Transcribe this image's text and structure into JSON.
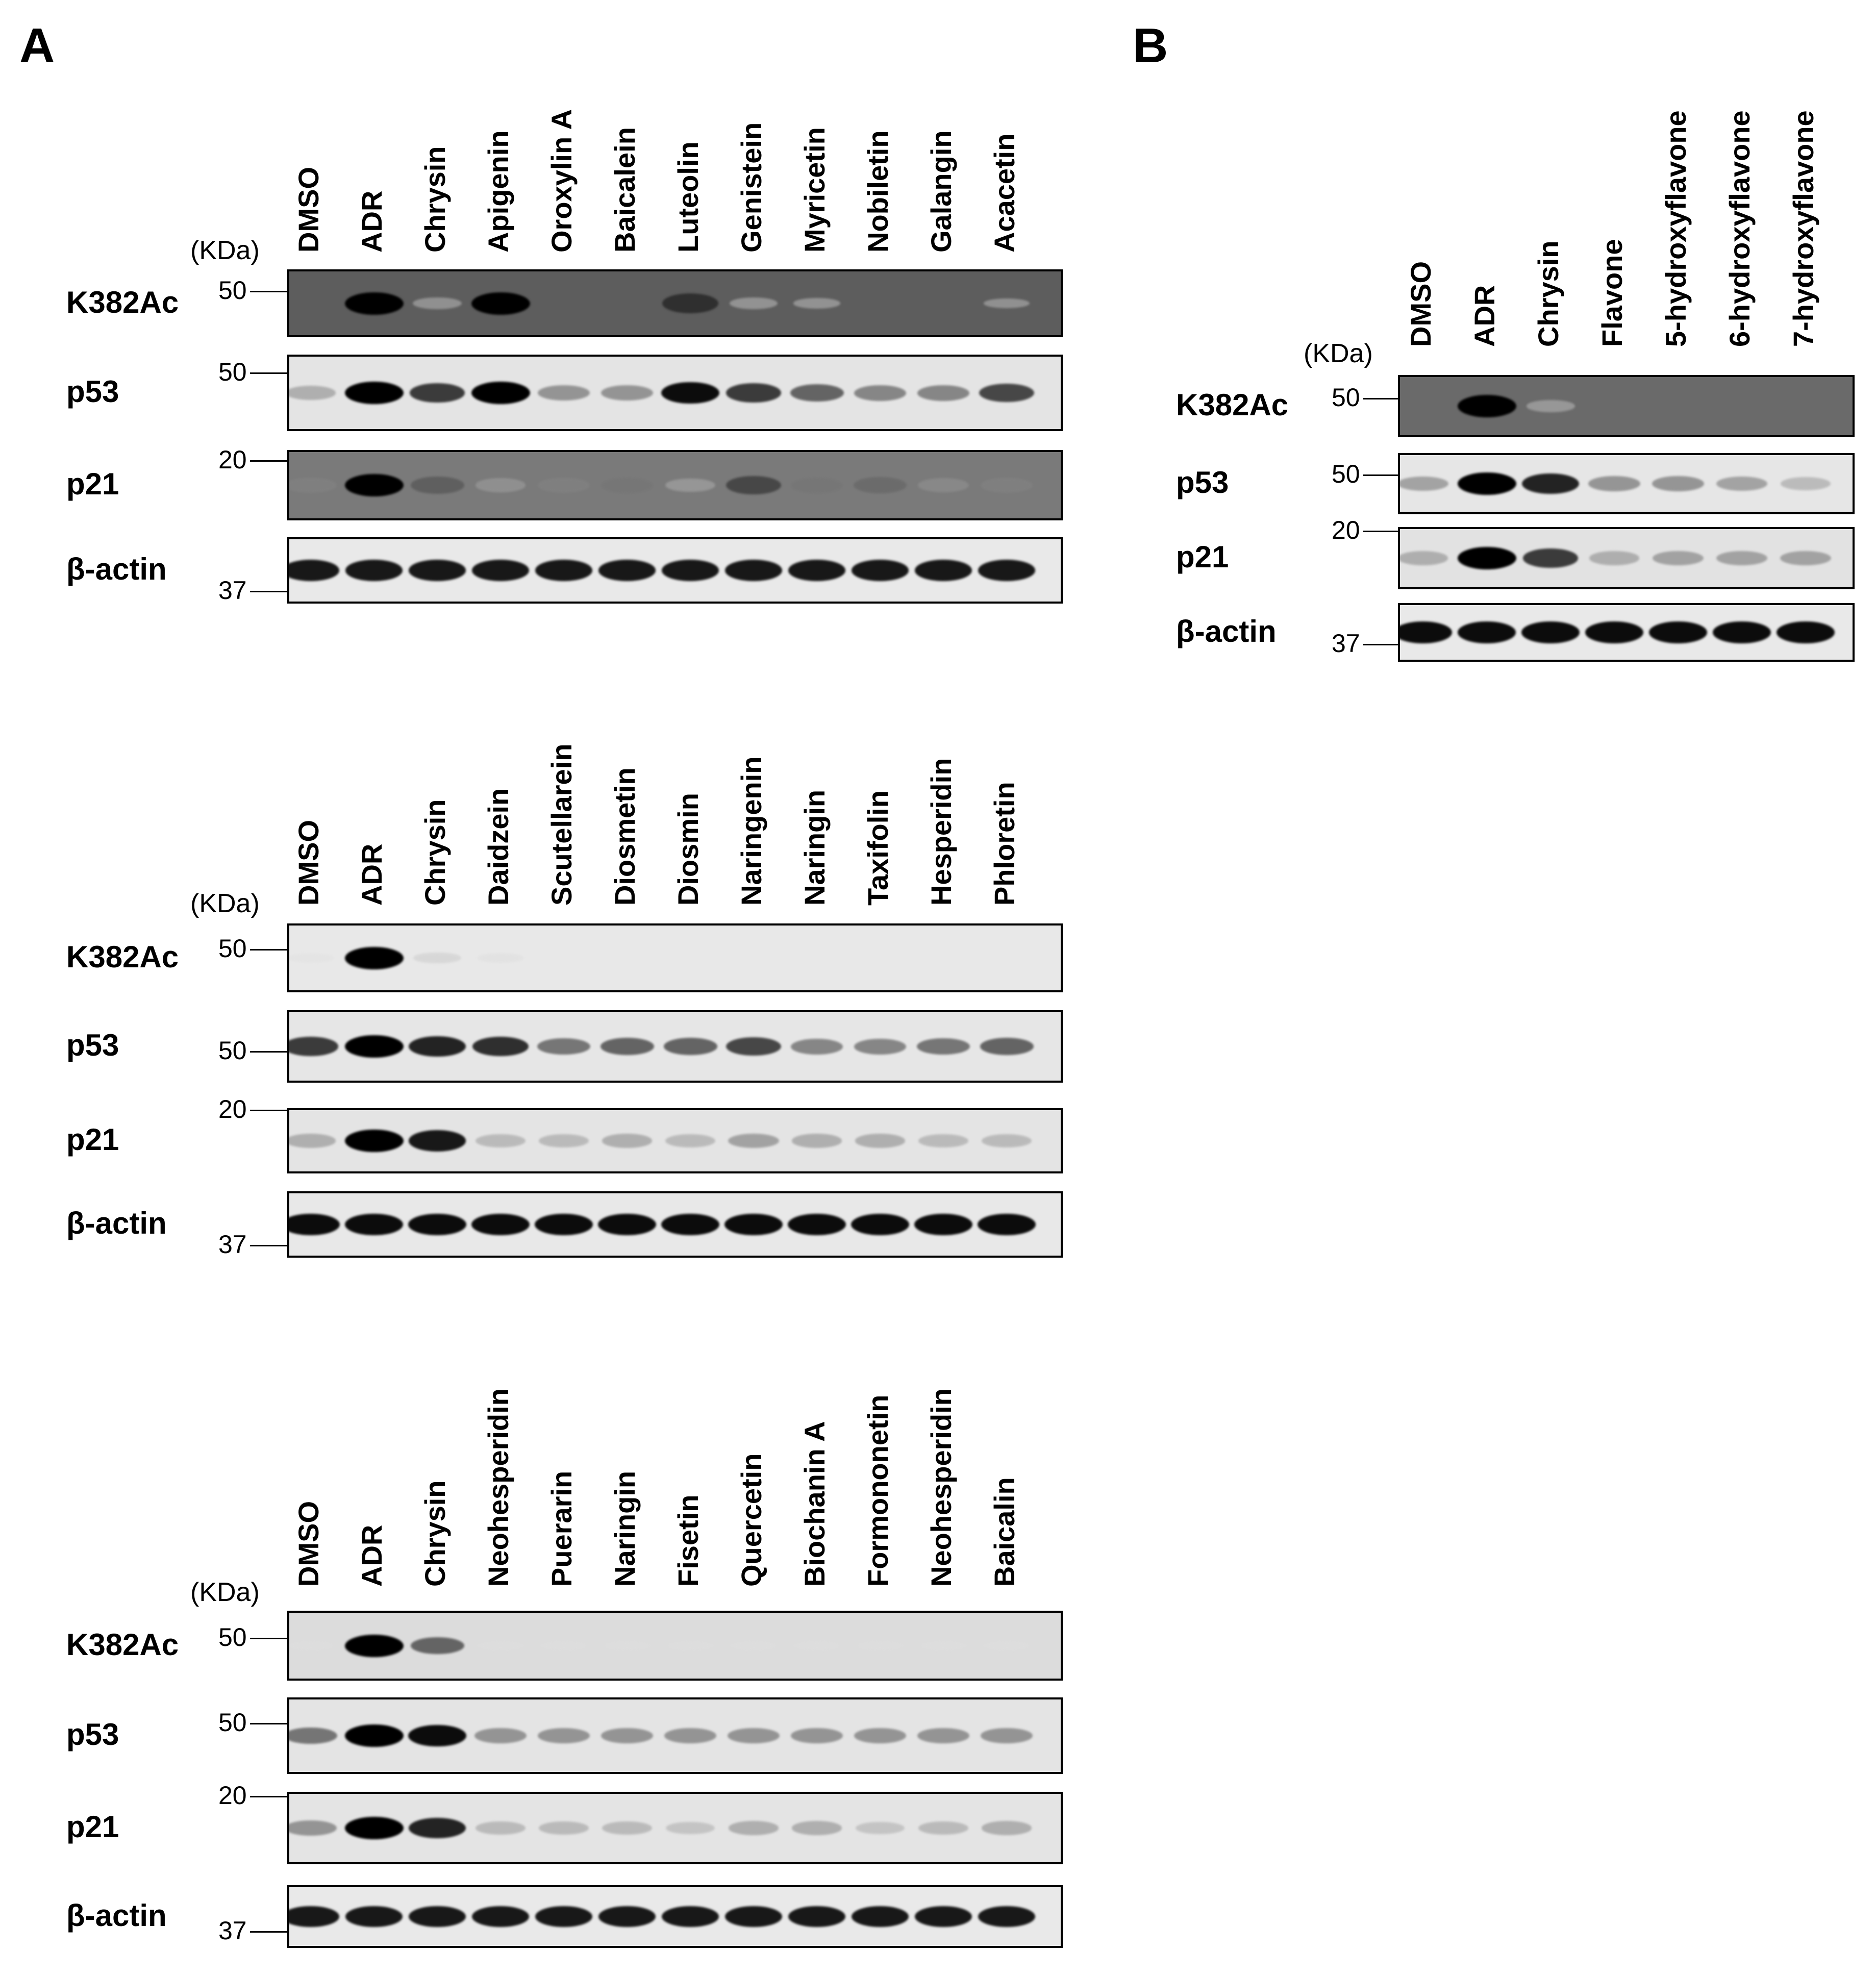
{
  "panels": [
    {
      "letter": "A",
      "blocks": [
        {
          "kda_label": "(KDa)",
          "lanes": [
            "DMSO",
            "ADR",
            "Chrysin",
            "Apigenin",
            "Oroxylin A",
            "Baicalein",
            "Luteolin",
            "Genistein",
            "Myricetin",
            "Nobiletin",
            "Galangin",
            "Acacetin"
          ],
          "rows": [
            {
              "label": "K382Ac",
              "marker": "50",
              "background": "#5d5d5d",
              "intensity": [
                0.0,
                1.0,
                0.22,
                1.0,
                0.0,
                0.0,
                0.8,
                0.18,
                0.08,
                0.0,
                0.0,
                0.03
              ]
            },
            {
              "label": "p53",
              "marker": "50",
              "background": "#e4e4e4",
              "intensity": [
                0.35,
                1.0,
                0.75,
                1.0,
                0.45,
                0.45,
                0.95,
                0.75,
                0.6,
                0.5,
                0.5,
                0.7
              ]
            },
            {
              "label": "p21",
              "marker": "20",
              "background": "#7a7a7a",
              "intensity": [
                0.45,
                1.0,
                0.6,
                0.35,
                0.45,
                0.5,
                0.3,
                0.7,
                0.5,
                0.55,
                0.4,
                0.45
              ]
            },
            {
              "label": "β-actin",
              "marker": "37",
              "background": "#e9e9e9",
              "intensity": [
                0.9,
                0.9,
                0.9,
                0.9,
                0.9,
                0.9,
                0.9,
                0.9,
                0.9,
                0.9,
                0.9,
                0.9
              ]
            }
          ]
        },
        {
          "kda_label": "(KDa)",
          "lanes": [
            "DMSO",
            "ADR",
            "Chrysin",
            "Daidzein",
            "Scutellarein",
            "Diosmetin",
            "Diosmin",
            "Naringenin",
            "Naringin",
            "Taxifolin",
            "Hesperidin",
            "Phloretin"
          ],
          "rows": [
            {
              "label": "K382Ac",
              "marker": "50",
              "background": "#e8e8e8",
              "intensity": [
                0.05,
                1.0,
                0.15,
                0.07,
                0.0,
                0.0,
                0.0,
                0.0,
                0.0,
                0.0,
                0.0,
                0.0
              ]
            },
            {
              "label": "p53",
              "marker": "50",
              "background": "#e6e6e6",
              "intensity": [
                0.75,
                1.0,
                0.85,
                0.8,
                0.55,
                0.6,
                0.6,
                0.7,
                0.5,
                0.5,
                0.55,
                0.6
              ]
            },
            {
              "label": "p21",
              "marker": "20",
              "background": "#e4e4e4",
              "intensity": [
                0.35,
                1.0,
                0.9,
                0.3,
                0.3,
                0.35,
                0.3,
                0.4,
                0.35,
                0.35,
                0.3,
                0.3
              ]
            },
            {
              "label": "β-actin",
              "marker": "37",
              "background": "#e8e8e8",
              "intensity": [
                0.95,
                0.95,
                0.95,
                0.95,
                0.95,
                0.95,
                0.95,
                0.95,
                0.95,
                0.95,
                0.95,
                0.95
              ]
            }
          ]
        },
        {
          "kda_label": "(KDa)",
          "lanes": [
            "DMSO",
            "ADR",
            "Chrysin",
            "Neohesperidin",
            "Puerarin",
            "Naringin",
            "Fisetin",
            "Quercetin",
            "Biochanin A",
            "Formononetin",
            "Neohesperidin",
            "Baicalin"
          ],
          "rows": [
            {
              "label": "K382Ac",
              "marker": "50",
              "background": "#dcdcdc",
              "intensity": [
                0.05,
                1.0,
                0.6,
                0.05,
                0.05,
                0.05,
                0.05,
                0.05,
                0.05,
                0.05,
                0.05,
                0.05
              ]
            },
            {
              "label": "p53",
              "marker": "50",
              "background": "#e4e4e4",
              "intensity": [
                0.55,
                1.0,
                0.95,
                0.45,
                0.45,
                0.45,
                0.45,
                0.45,
                0.45,
                0.45,
                0.45,
                0.45
              ]
            },
            {
              "label": "p21",
              "marker": "20",
              "background": "#e4e4e4",
              "intensity": [
                0.45,
                1.0,
                0.85,
                0.3,
                0.3,
                0.3,
                0.25,
                0.35,
                0.35,
                0.25,
                0.3,
                0.35
              ]
            },
            {
              "label": "β-actin",
              "marker": "37",
              "background": "#e9e9e9",
              "intensity": [
                0.9,
                0.9,
                0.9,
                0.9,
                0.9,
                0.9,
                0.9,
                0.9,
                0.9,
                0.9,
                0.9,
                0.9
              ]
            }
          ]
        }
      ]
    },
    {
      "letter": "B",
      "blocks": [
        {
          "kda_label": "(KDa)",
          "lanes": [
            "DMSO",
            "ADR",
            "Chrysin",
            "Flavone",
            "5-hydroxyflavone",
            "6-hydroxyflavone",
            "7-hydroxyflavone"
          ],
          "rows": [
            {
              "label": "K382Ac",
              "marker": "50",
              "background": "#6a6a6a",
              "intensity": [
                0.0,
                1.0,
                0.2,
                0.0,
                0.0,
                0.0,
                0.0
              ]
            },
            {
              "label": "p53",
              "marker": "50",
              "background": "#e6e6e6",
              "intensity": [
                0.4,
                1.0,
                0.85,
                0.45,
                0.45,
                0.4,
                0.3
              ]
            },
            {
              "label": "p21",
              "marker": "20",
              "background": "#e2e2e2",
              "intensity": [
                0.35,
                1.0,
                0.75,
                0.35,
                0.4,
                0.4,
                0.4
              ]
            },
            {
              "label": "β-actin",
              "marker": "37",
              "background": "#e9e9e9",
              "intensity": [
                0.95,
                0.95,
                0.95,
                0.95,
                0.95,
                0.95,
                0.95
              ]
            }
          ]
        }
      ]
    }
  ]
}
